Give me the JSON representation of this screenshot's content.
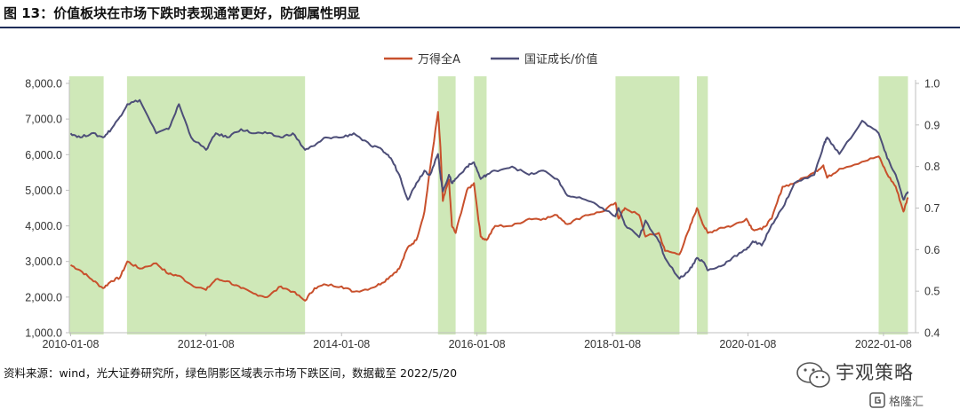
{
  "figure": {
    "title": "图 13：价值板块在市场下跌时表现通常更好，防御属性明显",
    "source": "资料来源：wind，光大证券研究所，绿色阴影区域表示市场下跌区间，数据截至 2022/5/20"
  },
  "watermark": {
    "brand": "宇观策略",
    "sub": "格隆汇"
  },
  "chart_data": {
    "type": "line",
    "title": "",
    "xlabel": "",
    "ylabel": "",
    "ylabel_right": "",
    "x_axis": {
      "range": [
        "2010-01-01",
        "2022-06-30"
      ],
      "tick_labels": [
        "2010-01-08",
        "2012-01-08",
        "2014-01-08",
        "2016-01-08",
        "2018-01-08",
        "2020-01-08",
        "2022-01-08"
      ]
    },
    "y_left": {
      "range": [
        1000,
        8000
      ],
      "tick_labels": [
        "1,000.0",
        "2,000.0",
        "3,000.0",
        "4,000.0",
        "5,000.0",
        "6,000.0",
        "7,000.0",
        "8,000.0"
      ]
    },
    "y_right": {
      "range": [
        0.4,
        1.0
      ],
      "tick_labels": [
        "0.4",
        "0.5",
        "0.6",
        "0.7",
        "0.8",
        "0.9",
        "1.0"
      ]
    },
    "legend": {
      "position": "top-center"
    },
    "grid": false,
    "shaded_regions": [
      {
        "start": "2010-01-01",
        "end": "2010-07-05"
      },
      {
        "start": "2010-11-08",
        "end": "2013-06-25"
      },
      {
        "start": "2015-06-12",
        "end": "2015-09-15"
      },
      {
        "start": "2015-12-23",
        "end": "2016-02-29"
      },
      {
        "start": "2018-01-24",
        "end": "2019-01-04"
      },
      {
        "start": "2019-04-08",
        "end": "2019-06-06"
      },
      {
        "start": "2021-12-13",
        "end": "2022-05-20"
      }
    ],
    "series": [
      {
        "name": "万得全A",
        "axis": "left",
        "color": "#c8502c",
        "points": [
          [
            "2010-01-08",
            2900
          ],
          [
            "2010-03-01",
            2750
          ],
          [
            "2010-05-01",
            2500
          ],
          [
            "2010-07-02",
            2250
          ],
          [
            "2010-08-15",
            2450
          ],
          [
            "2010-10-01",
            2550
          ],
          [
            "2010-11-10",
            3000
          ],
          [
            "2011-01-15",
            2800
          ],
          [
            "2011-04-15",
            2950
          ],
          [
            "2011-06-20",
            2650
          ],
          [
            "2011-08-15",
            2600
          ],
          [
            "2011-10-20",
            2350
          ],
          [
            "2012-01-08",
            2200
          ],
          [
            "2012-03-01",
            2500
          ],
          [
            "2012-05-01",
            2450
          ],
          [
            "2012-07-15",
            2250
          ],
          [
            "2012-09-20",
            2100
          ],
          [
            "2012-12-03",
            2000
          ],
          [
            "2013-02-15",
            2300
          ],
          [
            "2013-04-20",
            2150
          ],
          [
            "2013-06-25",
            1900
          ],
          [
            "2013-08-15",
            2250
          ],
          [
            "2013-10-15",
            2350
          ],
          [
            "2014-01-08",
            2300
          ],
          [
            "2014-03-15",
            2150
          ],
          [
            "2014-06-15",
            2250
          ],
          [
            "2014-08-15",
            2400
          ],
          [
            "2014-10-01",
            2600
          ],
          [
            "2014-11-15",
            2800
          ],
          [
            "2014-12-31",
            3400
          ],
          [
            "2015-02-15",
            3600
          ],
          [
            "2015-03-31",
            4400
          ],
          [
            "2015-04-30",
            5600
          ],
          [
            "2015-06-12",
            7200
          ],
          [
            "2015-06-25",
            6200
          ],
          [
            "2015-07-08",
            4700
          ],
          [
            "2015-08-10",
            5300
          ],
          [
            "2015-08-26",
            4000
          ],
          [
            "2015-09-15",
            3800
          ],
          [
            "2015-11-15",
            5000
          ],
          [
            "2015-12-23",
            5200
          ],
          [
            "2016-01-28",
            3700
          ],
          [
            "2016-02-29",
            3600
          ],
          [
            "2016-04-15",
            4000
          ],
          [
            "2016-07-15",
            4000
          ],
          [
            "2016-10-15",
            4200
          ],
          [
            "2016-12-31",
            4200
          ],
          [
            "2017-03-15",
            4300
          ],
          [
            "2017-05-10",
            4050
          ],
          [
            "2017-08-15",
            4300
          ],
          [
            "2017-11-15",
            4400
          ],
          [
            "2018-01-24",
            4650
          ],
          [
            "2018-02-09",
            4200
          ],
          [
            "2018-03-15",
            4500
          ],
          [
            "2018-06-01",
            4300
          ],
          [
            "2018-07-05",
            3700
          ],
          [
            "2018-09-15",
            3800
          ],
          [
            "2018-10-18",
            3300
          ],
          [
            "2019-01-04",
            3200
          ],
          [
            "2019-02-25",
            3900
          ],
          [
            "2019-04-08",
            4500
          ],
          [
            "2019-05-15",
            4000
          ],
          [
            "2019-06-06",
            3800
          ],
          [
            "2019-08-15",
            3950
          ],
          [
            "2019-10-15",
            4000
          ],
          [
            "2019-12-31",
            4200
          ],
          [
            "2020-02-03",
            3900
          ],
          [
            "2020-03-23",
            3900
          ],
          [
            "2020-05-15",
            4200
          ],
          [
            "2020-07-13",
            5100
          ],
          [
            "2020-09-15",
            5200
          ],
          [
            "2020-12-31",
            5500
          ],
          [
            "2021-02-18",
            5700
          ],
          [
            "2021-03-10",
            5350
          ],
          [
            "2021-05-15",
            5600
          ],
          [
            "2021-09-15",
            5800
          ],
          [
            "2021-12-13",
            5950
          ],
          [
            "2022-01-28",
            5450
          ],
          [
            "2022-03-15",
            5100
          ],
          [
            "2022-04-26",
            4400
          ],
          [
            "2022-05-20",
            4800
          ]
        ]
      },
      {
        "name": "国证成长/价值",
        "axis": "right",
        "color": "#4d4e78",
        "points": [
          [
            "2010-01-08",
            0.88
          ],
          [
            "2010-03-01",
            0.87
          ],
          [
            "2010-05-01",
            0.88
          ],
          [
            "2010-07-02",
            0.87
          ],
          [
            "2010-08-15",
            0.89
          ],
          [
            "2010-10-01",
            0.92
          ],
          [
            "2010-11-10",
            0.95
          ],
          [
            "2011-01-15",
            0.96
          ],
          [
            "2011-04-15",
            0.88
          ],
          [
            "2011-06-20",
            0.89
          ],
          [
            "2011-08-15",
            0.95
          ],
          [
            "2011-10-20",
            0.87
          ],
          [
            "2012-01-08",
            0.84
          ],
          [
            "2012-03-01",
            0.88
          ],
          [
            "2012-05-01",
            0.87
          ],
          [
            "2012-07-15",
            0.89
          ],
          [
            "2012-09-20",
            0.88
          ],
          [
            "2012-12-03",
            0.88
          ],
          [
            "2013-02-15",
            0.87
          ],
          [
            "2013-04-20",
            0.88
          ],
          [
            "2013-06-25",
            0.84
          ],
          [
            "2013-08-15",
            0.85
          ],
          [
            "2013-10-15",
            0.87
          ],
          [
            "2014-01-08",
            0.87
          ],
          [
            "2014-03-15",
            0.88
          ],
          [
            "2014-06-15",
            0.85
          ],
          [
            "2014-08-15",
            0.84
          ],
          [
            "2014-10-01",
            0.82
          ],
          [
            "2014-11-15",
            0.78
          ],
          [
            "2014-12-31",
            0.72
          ],
          [
            "2015-02-15",
            0.76
          ],
          [
            "2015-03-31",
            0.79
          ],
          [
            "2015-04-30",
            0.78
          ],
          [
            "2015-06-12",
            0.83
          ],
          [
            "2015-06-25",
            0.78
          ],
          [
            "2015-07-08",
            0.74
          ],
          [
            "2015-08-10",
            0.78
          ],
          [
            "2015-08-26",
            0.76
          ],
          [
            "2015-09-15",
            0.77
          ],
          [
            "2015-11-15",
            0.8
          ],
          [
            "2015-12-23",
            0.81
          ],
          [
            "2016-01-28",
            0.77
          ],
          [
            "2016-02-29",
            0.78
          ],
          [
            "2016-04-15",
            0.79
          ],
          [
            "2016-07-15",
            0.8
          ],
          [
            "2016-10-15",
            0.78
          ],
          [
            "2016-12-31",
            0.79
          ],
          [
            "2017-03-15",
            0.77
          ],
          [
            "2017-05-10",
            0.73
          ],
          [
            "2017-08-15",
            0.72
          ],
          [
            "2017-11-15",
            0.7
          ],
          [
            "2018-01-24",
            0.68
          ],
          [
            "2018-02-09",
            0.7
          ],
          [
            "2018-03-15",
            0.66
          ],
          [
            "2018-06-01",
            0.63
          ],
          [
            "2018-07-05",
            0.67
          ],
          [
            "2018-09-15",
            0.62
          ],
          [
            "2018-10-18",
            0.58
          ],
          [
            "2019-01-04",
            0.53
          ],
          [
            "2019-02-25",
            0.55
          ],
          [
            "2019-04-08",
            0.58
          ],
          [
            "2019-05-15",
            0.57
          ],
          [
            "2019-06-06",
            0.55
          ],
          [
            "2019-08-15",
            0.56
          ],
          [
            "2019-10-15",
            0.58
          ],
          [
            "2019-12-31",
            0.6
          ],
          [
            "2020-02-03",
            0.62
          ],
          [
            "2020-03-23",
            0.61
          ],
          [
            "2020-05-15",
            0.66
          ],
          [
            "2020-07-13",
            0.7
          ],
          [
            "2020-09-15",
            0.76
          ],
          [
            "2020-12-31",
            0.78
          ],
          [
            "2021-02-18",
            0.85
          ],
          [
            "2021-03-10",
            0.87
          ],
          [
            "2021-05-15",
            0.83
          ],
          [
            "2021-09-15",
            0.91
          ],
          [
            "2021-12-13",
            0.88
          ],
          [
            "2022-01-28",
            0.82
          ],
          [
            "2022-03-15",
            0.78
          ],
          [
            "2022-04-26",
            0.72
          ],
          [
            "2022-05-20",
            0.74
          ]
        ]
      }
    ]
  }
}
